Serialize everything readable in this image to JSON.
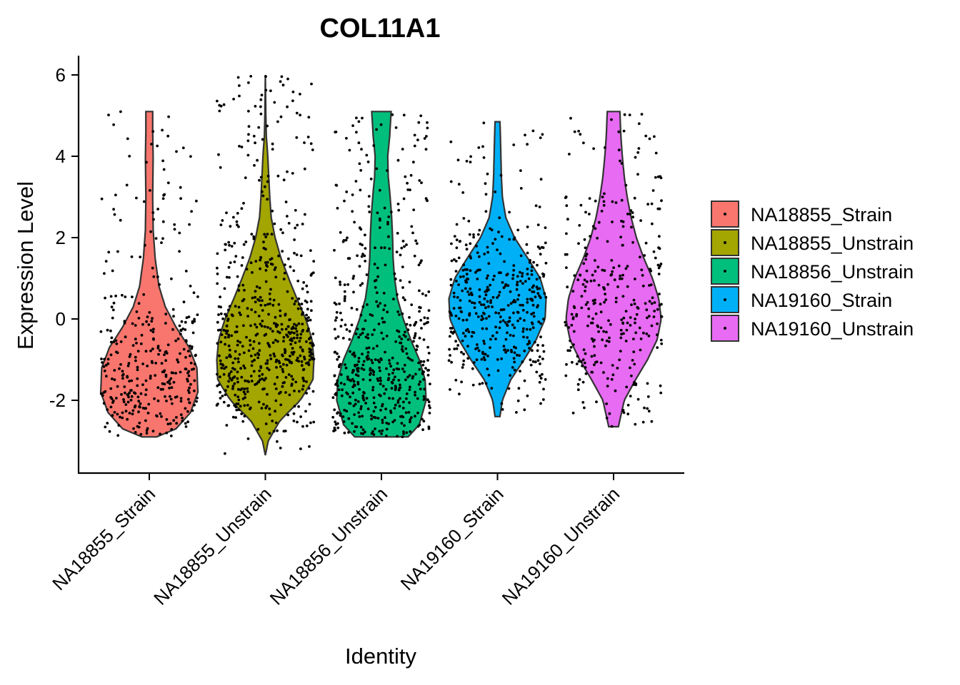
{
  "chart_data": {
    "type": "violin",
    "title": "COL11A1",
    "xlabel": "Identity",
    "ylabel": "Expression Level",
    "ylim": [
      -3.7,
      6.5
    ],
    "y_ticks": [
      -2,
      0,
      2,
      4,
      6
    ],
    "y_tick_labels": [
      "-2",
      "0",
      "2",
      "4",
      "6"
    ],
    "legend_position": "right",
    "grid": false,
    "categories": [
      "NA18855_Strain",
      "NA18855_Unstrain",
      "NA18856_Unstrain",
      "NA19160_Strain",
      "NA19160_Unstrain"
    ],
    "series": [
      {
        "name": "NA18855_Strain",
        "color": "#F8766D",
        "min": -2.9,
        "max": 5.1,
        "n_points": 360,
        "density": [
          [
            -2.9,
            0.15
          ],
          [
            -2.7,
            0.55
          ],
          [
            -2.3,
            0.85
          ],
          [
            -1.8,
            1.0
          ],
          [
            -1.2,
            0.98
          ],
          [
            -0.7,
            0.82
          ],
          [
            -0.2,
            0.55
          ],
          [
            0.3,
            0.33
          ],
          [
            0.8,
            0.2
          ],
          [
            1.5,
            0.12
          ],
          [
            2.2,
            0.08
          ],
          [
            3.0,
            0.07
          ],
          [
            4.0,
            0.08
          ],
          [
            4.6,
            0.07
          ],
          [
            5.1,
            0.07
          ]
        ]
      },
      {
        "name": "NA18855_Unstrain",
        "color": "#A3A500",
        "min": -3.35,
        "max": 6.0,
        "n_points": 600,
        "density": [
          [
            -3.35,
            0.0
          ],
          [
            -3.0,
            0.06
          ],
          [
            -2.5,
            0.3
          ],
          [
            -2.0,
            0.72
          ],
          [
            -1.5,
            0.98
          ],
          [
            -1.0,
            1.0
          ],
          [
            -0.5,
            0.96
          ],
          [
            0.0,
            0.83
          ],
          [
            0.5,
            0.65
          ],
          [
            1.0,
            0.48
          ],
          [
            1.5,
            0.32
          ],
          [
            2.0,
            0.2
          ],
          [
            2.5,
            0.12
          ],
          [
            3.0,
            0.09
          ],
          [
            3.5,
            0.07
          ],
          [
            4.0,
            0.05
          ],
          [
            4.5,
            0.02
          ],
          [
            5.0,
            0.01
          ],
          [
            6.0,
            0.0
          ]
        ]
      },
      {
        "name": "NA18856_Unstrain",
        "color": "#00BF7D",
        "min": -2.9,
        "max": 5.1,
        "n_points": 550,
        "density": [
          [
            -2.9,
            0.55
          ],
          [
            -2.6,
            0.78
          ],
          [
            -2.0,
            0.92
          ],
          [
            -1.5,
            0.9
          ],
          [
            -1.0,
            0.78
          ],
          [
            -0.5,
            0.6
          ],
          [
            0.0,
            0.45
          ],
          [
            0.5,
            0.33
          ],
          [
            1.0,
            0.27
          ],
          [
            1.5,
            0.24
          ],
          [
            2.0,
            0.23
          ],
          [
            2.5,
            0.21
          ],
          [
            3.0,
            0.18
          ],
          [
            3.5,
            0.14
          ],
          [
            4.0,
            0.13
          ],
          [
            4.5,
            0.17
          ],
          [
            5.1,
            0.2
          ]
        ]
      },
      {
        "name": "NA19160_Strain",
        "color": "#00B0F6",
        "min": -2.4,
        "max": 4.85,
        "n_points": 420,
        "density": [
          [
            -2.4,
            0.05
          ],
          [
            -2.0,
            0.1
          ],
          [
            -1.5,
            0.27
          ],
          [
            -1.0,
            0.55
          ],
          [
            -0.5,
            0.8
          ],
          [
            0.0,
            0.98
          ],
          [
            0.5,
            1.0
          ],
          [
            1.0,
            0.88
          ],
          [
            1.5,
            0.62
          ],
          [
            2.0,
            0.35
          ],
          [
            2.5,
            0.17
          ],
          [
            3.0,
            0.1
          ],
          [
            3.5,
            0.08
          ],
          [
            4.0,
            0.07
          ],
          [
            4.5,
            0.06
          ],
          [
            4.85,
            0.05
          ]
        ]
      },
      {
        "name": "NA19160_Unstrain",
        "color": "#E76BF3",
        "min": -2.65,
        "max": 5.1,
        "n_points": 330,
        "density": [
          [
            -2.65,
            0.1
          ],
          [
            -2.0,
            0.22
          ],
          [
            -1.5,
            0.45
          ],
          [
            -1.0,
            0.7
          ],
          [
            -0.5,
            0.9
          ],
          [
            0.0,
            0.98
          ],
          [
            0.5,
            0.93
          ],
          [
            1.0,
            0.8
          ],
          [
            1.5,
            0.62
          ],
          [
            2.0,
            0.47
          ],
          [
            2.5,
            0.36
          ],
          [
            3.0,
            0.28
          ],
          [
            3.5,
            0.22
          ],
          [
            4.0,
            0.18
          ],
          [
            4.5,
            0.15
          ],
          [
            5.1,
            0.13
          ]
        ]
      }
    ]
  }
}
